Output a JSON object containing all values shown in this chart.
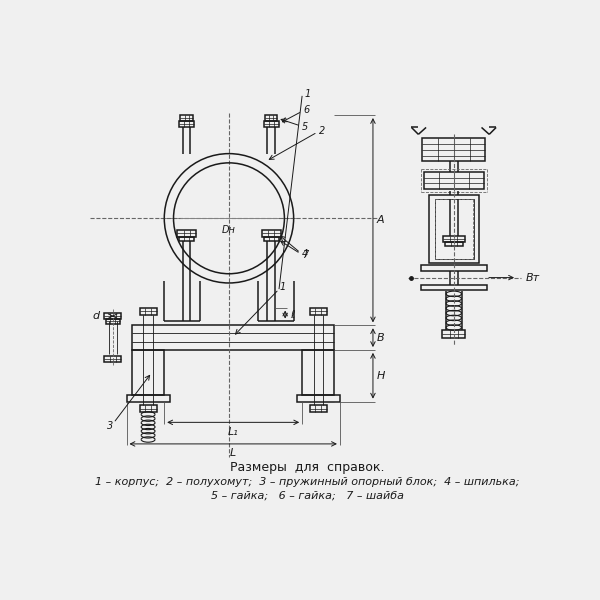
{
  "bg_color": "#f0f0f0",
  "line_color": "#1a1a1a",
  "title_text": "Размеры  для  справок.",
  "legend_line1": "1 – корпус;  2 – полухомут;  3 – пружинный опорный блок;  4 – шпилька;",
  "legend_line2": "5 – гайка;   6 – гайка;   7 – шайба",
  "lw_main": 1.1,
  "lw_thin": 0.6,
  "lw_dash": 0.6
}
